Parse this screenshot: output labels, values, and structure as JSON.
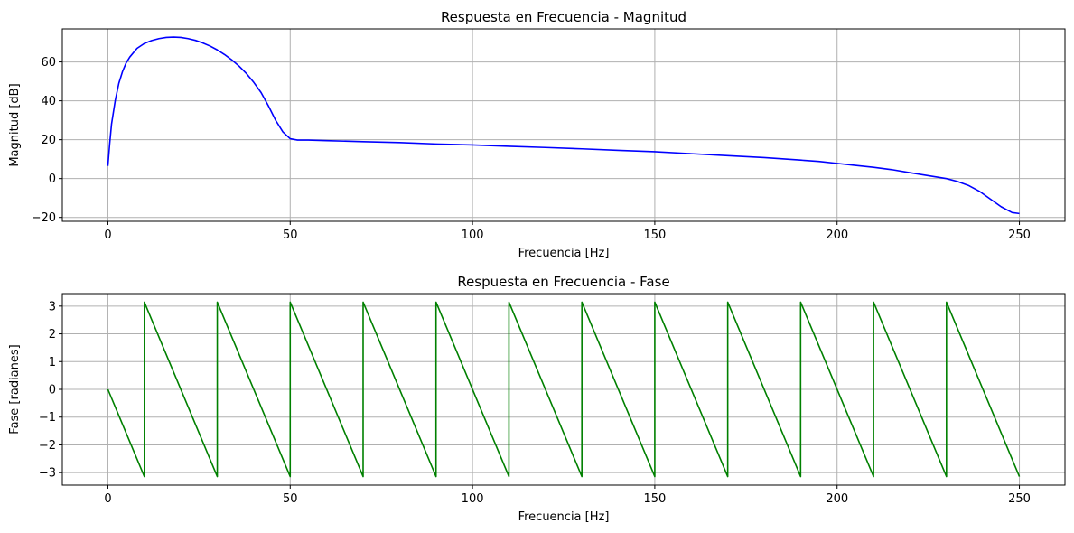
{
  "chart_data": [
    {
      "type": "line",
      "title": "Respuesta en Frecuencia - Magnitud",
      "xlabel": "Frecuencia [Hz]",
      "ylabel": "Magnitud [dB]",
      "xlim": [
        -12.5,
        262.5
      ],
      "ylim": [
        -22,
        77
      ],
      "xticks": [
        0,
        50,
        100,
        150,
        200,
        250
      ],
      "yticks": [
        -20,
        0,
        20,
        40,
        60
      ],
      "grid": true,
      "series": [
        {
          "color": "#0000ff",
          "x": [
            0,
            0.5,
            1,
            2,
            3,
            4,
            5,
            6,
            8,
            10,
            12,
            14,
            16,
            18,
            20,
            22,
            24,
            26,
            28,
            30,
            32,
            34,
            36,
            38,
            40,
            42,
            44,
            46,
            48,
            50,
            52,
            55,
            60,
            70,
            80,
            90,
            100,
            110,
            120,
            130,
            140,
            150,
            160,
            170,
            180,
            190,
            195,
            200,
            205,
            210,
            215,
            220,
            225,
            230,
            233,
            236,
            239,
            242,
            245,
            248,
            250
          ],
          "y": [
            6.5,
            18,
            28,
            40,
            49,
            55,
            59.5,
            62.5,
            67,
            69.5,
            71,
            72,
            72.6,
            72.8,
            72.6,
            72,
            71.1,
            69.8,
            68.2,
            66.2,
            63.8,
            61,
            57.8,
            54,
            49.5,
            44.3,
            37.5,
            30,
            24,
            20.5,
            19.8,
            19.8,
            19.5,
            19,
            18.5,
            17.8,
            17.3,
            16.6,
            16,
            15.3,
            14.5,
            13.8,
            12.8,
            11.8,
            10.8,
            9.5,
            8.8,
            7.8,
            6.8,
            5.8,
            4.6,
            3,
            1.5,
            0,
            -1.5,
            -3.5,
            -6.5,
            -10.5,
            -14.5,
            -17.5,
            -18
          ]
        }
      ]
    },
    {
      "type": "line",
      "title": "Respuesta en Frecuencia - Fase",
      "xlabel": "Frecuencia [Hz]",
      "ylabel": "Fase [radianes]",
      "xlim": [
        -12.5,
        262.5
      ],
      "ylim": [
        -3.45,
        3.45
      ],
      "xticks": [
        0,
        50,
        100,
        150,
        200,
        250
      ],
      "yticks": [
        -3,
        -2,
        -1,
        0,
        1,
        2,
        3
      ],
      "grid": true,
      "series": [
        {
          "color": "#008000",
          "x": [
            0,
            10,
            10,
            30,
            30,
            50,
            50,
            70,
            70,
            90,
            90,
            110,
            110,
            130,
            130,
            150,
            150,
            170,
            170,
            190,
            190,
            210,
            210,
            230,
            230,
            250
          ],
          "y": [
            0,
            -3.14159,
            3.14159,
            -3.14159,
            3.14159,
            -3.14159,
            3.14159,
            -3.14159,
            3.14159,
            -3.14159,
            3.14159,
            -3.14159,
            3.14159,
            -3.14159,
            3.14159,
            -3.14159,
            3.14159,
            -3.14159,
            3.14159,
            -3.14159,
            3.14159,
            -3.14159,
            3.14159,
            -3.14159,
            3.14159,
            -3.14159
          ]
        }
      ]
    }
  ]
}
